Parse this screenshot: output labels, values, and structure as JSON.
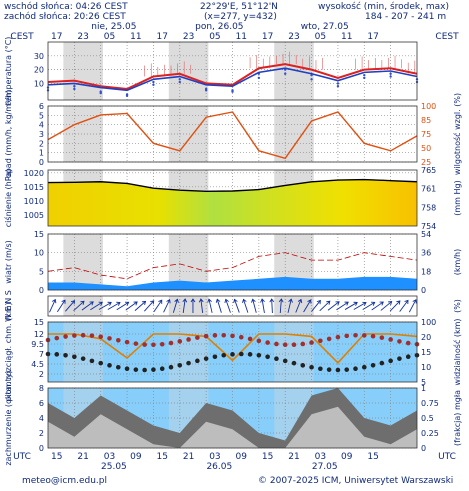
{
  "header": {
    "sunrise": "wschód słońca: 04:26 CEST",
    "sunset": "zachód słońca: 20:26 CEST",
    "coords": "22°29'E, 51°12'N",
    "grid": "(x=277, y=432)",
    "altitude_label": "wysokość (min, środek, max)",
    "altitude_values": "184 - 207 - 241 m"
  },
  "footer": {
    "email": "meteo@icm.edu.pl",
    "copyright": "© 2007-2025 ICM, Uniwersytet Warszawski"
  },
  "timezone_top": "CEST",
  "timezone_bottom": "UTC",
  "colors": {
    "night_shade": "#d8d8d8",
    "temp_line": "#dd2020",
    "temp_line_low": "#2040c0",
    "pressure_line": "#000000",
    "humidity_line": "#e05010",
    "wind_band": "#1e90ff",
    "wind_gust": "#c00000",
    "cloud_sky": "#87cefa"
  },
  "chart_data": [
    {
      "type": "line",
      "panel": "temperature",
      "ylabel": "temperatura (°C)",
      "ylim": [
        -2,
        40
      ],
      "yticks": [
        10,
        20,
        30
      ],
      "x_hours_utc": [
        0,
        6,
        12,
        18,
        24,
        30,
        36,
        42,
        48,
        54,
        60,
        66,
        72,
        78,
        84
      ],
      "series": [
        {
          "values": [
            11,
            12,
            8,
            6,
            15,
            17,
            10,
            9,
            21,
            24,
            20,
            14,
            20,
            21,
            17
          ]
        },
        {
          "values": [
            9,
            10,
            7,
            5,
            13,
            15,
            9,
            8,
            18,
            21,
            17,
            12,
            18,
            19,
            15
          ]
        }
      ]
    },
    {
      "type": "line",
      "panel": "precipitation",
      "ylabel": "opad (mm/h, kg/m²/h)",
      "ylabel_right": "wilgotność wzgl. (%)",
      "ylim": [
        0,
        6
      ],
      "yticks": [
        0,
        1,
        2,
        3,
        4,
        5,
        6
      ],
      "yticks_right": [
        25,
        50,
        75,
        85,
        100
      ],
      "humidity_values": [
        55,
        75,
        88,
        90,
        50,
        40,
        85,
        92,
        40,
        30,
        80,
        92,
        50,
        40,
        60
      ]
    },
    {
      "type": "line",
      "panel": "pressure",
      "ylabel": "ciśnienie (hPa)",
      "ylabel_right": "(mm Hg)",
      "ylim": [
        1001,
        1021
      ],
      "yticks": [
        1005,
        1010,
        1015,
        1020
      ],
      "yticks_right": [
        754,
        758,
        761,
        765
      ],
      "values": [
        1016.5,
        1016.6,
        1016.8,
        1016.2,
        1014.5,
        1013.8,
        1013.4,
        1013.5,
        1014.0,
        1015.5,
        1016.8,
        1017.4,
        1017.6,
        1017.2,
        1016.8
      ]
    },
    {
      "type": "area",
      "panel": "wind",
      "ylabel": "wiatr (m/s)",
      "ylabel_right": "(km/h)",
      "ylim": [
        0,
        15
      ],
      "yticks": [
        0,
        5,
        10,
        15
      ],
      "yticks_right": [
        0,
        18,
        36,
        54
      ],
      "mean_values": [
        2,
        2,
        1.5,
        1,
        2,
        2.5,
        2,
        2.5,
        3,
        3.5,
        3,
        3,
        3.5,
        3.5,
        3
      ],
      "gust_values": [
        5,
        6,
        4,
        3,
        6,
        7,
        5,
        6,
        9,
        10,
        8,
        8,
        10,
        9,
        8
      ]
    },
    {
      "type": "scatter",
      "panel": "wind_direction",
      "ylabel": "W E N S",
      "ylabel_right": "(%)"
    },
    {
      "type": "scatter",
      "panel": "cloud_layers",
      "ylabel": "pion. rozciągł. chm. (km)",
      "ylabel_right": "widzialność (km)",
      "ylim": [
        0,
        15
      ],
      "yticks": [
        2.0,
        4.5,
        7.0,
        9.5,
        12.0,
        15.0
      ],
      "yticks_right": [
        5,
        10,
        15,
        20,
        100
      ],
      "visibility_values": [
        20,
        20,
        18,
        10,
        20,
        20,
        19,
        9,
        20,
        20,
        19,
        8,
        20,
        20,
        19
      ]
    },
    {
      "type": "area",
      "panel": "cloudiness",
      "ylabel": "zachmurzenie (oktanty)",
      "ylabel_right": "(frakcja) mgła",
      "ylim": [
        0,
        8
      ],
      "yticks": [
        0,
        2,
        4,
        6,
        8
      ],
      "yticks_right": [
        0,
        0.25,
        0.5,
        0.75,
        1
      ],
      "values": [
        6,
        4,
        7,
        5,
        3,
        2,
        6,
        5,
        2,
        1,
        7,
        8,
        4,
        3,
        5
      ]
    }
  ],
  "axis_top": {
    "hours": [
      "17",
      "23",
      "05",
      "11",
      "17",
      "23",
      "05",
      "11",
      "17",
      "23",
      "05",
      "11",
      "17"
    ],
    "days": [
      "nie, 25.05",
      "pon, 26.05",
      "wto, 27.05"
    ]
  },
  "axis_bottom": {
    "hours": [
      "15",
      "21",
      "03",
      "09",
      "15",
      "21",
      "03",
      "09",
      "15",
      "21",
      "03",
      "09",
      "15"
    ],
    "days": [
      "25.05",
      "26.05",
      "27.05"
    ]
  }
}
